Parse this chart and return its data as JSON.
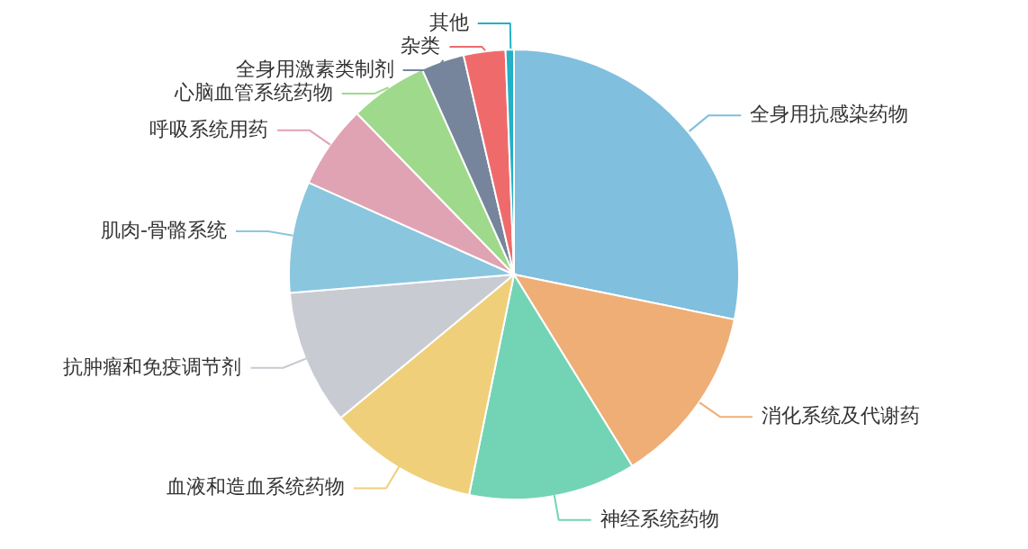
{
  "chart_data": {
    "type": "pie",
    "categories": [
      "全身用抗感染药物",
      "消化系统及代谢药",
      "神经系统药物",
      "血液和造血系统药物",
      "抗肿瘤和免疫调节剂",
      "肌肉-骨骼系统",
      "呼吸系统用药",
      "心脑血管系统药物",
      "全身用激素类制剂",
      "杂类",
      "其他"
    ],
    "values": [
      28.2,
      13,
      12,
      10.8,
      9.7,
      8,
      6,
      5.6,
      3.1,
      3,
      0.6
    ],
    "colors": [
      "#80bfdd",
      "#efae76",
      "#73d3b5",
      "#efcf79",
      "#c8cbd2",
      "#8bc6df",
      "#e0a3b3",
      "#9fd98b",
      "#76859c",
      "#ef6b6b",
      "#22b1c5"
    ]
  }
}
